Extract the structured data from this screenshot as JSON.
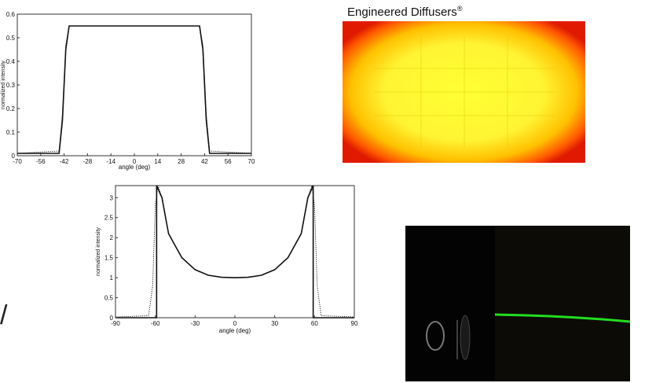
{
  "chart_data": [
    {
      "type": "line",
      "title": "",
      "xlabel": "angle (deg)",
      "ylabel": "normalized intensity",
      "xlim": [
        -70,
        70
      ],
      "ylim": [
        0,
        0.6
      ],
      "xticks": [
        "-70",
        "-56",
        "-42",
        "-28",
        "-14",
        "0",
        "14",
        "28",
        "42",
        "56",
        "70"
      ],
      "yticks": [
        "0",
        "0.1",
        "0.2",
        "0.3",
        "0.4",
        "0.5",
        "0.6"
      ],
      "grid": false,
      "series": [
        {
          "style": "solid",
          "x": [
            -70,
            -45,
            -43,
            -41,
            -39,
            39,
            41,
            43,
            45,
            70
          ],
          "y": [
            0.01,
            0.01,
            0.15,
            0.45,
            0.55,
            0.55,
            0.45,
            0.15,
            0.01,
            0.01
          ]
        },
        {
          "style": "dotted",
          "x": [
            -70,
            -45,
            -43,
            -41,
            -39,
            39,
            41,
            43,
            45,
            70
          ],
          "y": [
            0.01,
            0.02,
            0.18,
            0.47,
            0.55,
            0.55,
            0.47,
            0.18,
            0.02,
            0.01
          ]
        }
      ]
    },
    {
      "type": "line",
      "title": "",
      "xlabel": "angle (deg)",
      "ylabel": "normalized intensity",
      "xlim": [
        -90,
        90
      ],
      "ylim": [
        0,
        3.3
      ],
      "xticks": [
        "-90",
        "-60",
        "-30",
        "0",
        "30",
        "60",
        "90"
      ],
      "yticks": [
        "0",
        "0.5",
        "1",
        "1.5",
        "2",
        "2.5",
        "3"
      ],
      "grid": false,
      "series": [
        {
          "style": "solid",
          "x": [
            -90,
            -59,
            -59,
            -55,
            -50,
            -40,
            -30,
            -20,
            -10,
            0,
            10,
            20,
            30,
            40,
            50,
            55,
            59,
            59,
            90
          ],
          "y": [
            0,
            0,
            3.3,
            3.0,
            2.1,
            1.5,
            1.2,
            1.06,
            1.01,
            1.0,
            1.01,
            1.06,
            1.2,
            1.5,
            2.1,
            3.0,
            3.3,
            0,
            0
          ]
        },
        {
          "style": "dotted",
          "x": [
            -90,
            -65,
            -62,
            -60,
            -58,
            -55,
            -50,
            -40,
            -30,
            -20,
            -10,
            0,
            10,
            20,
            30,
            40,
            50,
            55,
            58,
            60,
            62,
            65,
            90
          ],
          "y": [
            0.02,
            0.05,
            0.8,
            2.8,
            3.3,
            3.0,
            2.1,
            1.5,
            1.2,
            1.06,
            1.01,
            1.0,
            1.01,
            1.06,
            1.2,
            1.5,
            2.1,
            3.0,
            3.3,
            2.8,
            0.8,
            0.05,
            0.02
          ]
        }
      ]
    }
  ],
  "heatmap": {
    "title": "Engineered Diffusers",
    "mark": "®"
  },
  "side_mark": "/",
  "colors": {
    "laser": "#22dd22",
    "heat_core": "#ffff33",
    "heat_edge": "#e01a00"
  }
}
